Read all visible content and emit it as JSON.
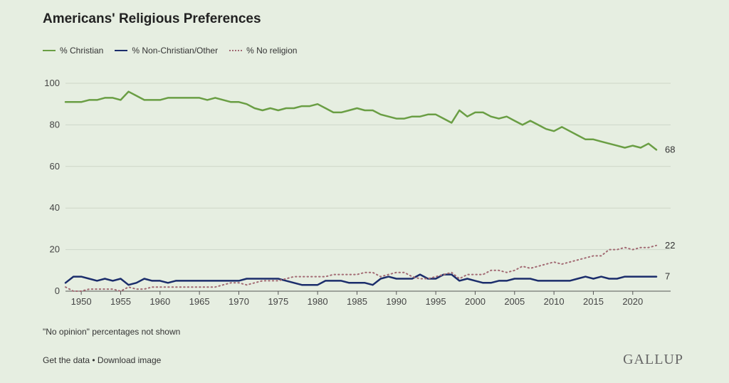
{
  "title": "Americans' Religious Preferences",
  "note": "\"No opinion\" percentages not shown",
  "links": {
    "get_data": "Get the data",
    "separator": " • ",
    "download": "Download image"
  },
  "logo_text": "GALLUP",
  "colors": {
    "christian": "#6a9e44",
    "non_christian": "#1b2d6b",
    "no_religion": "#a26a73",
    "grid": "#cdd6c8",
    "axis": "#555555"
  },
  "chart_data": {
    "type": "line",
    "title": "Americans' Religious Preferences",
    "xlabel": "",
    "ylabel": "",
    "ylim": [
      0,
      100
    ],
    "xlim": [
      1948,
      2023
    ],
    "yticks": [
      0,
      20,
      40,
      60,
      80,
      100
    ],
    "xticks": [
      1950,
      1955,
      1960,
      1965,
      1970,
      1975,
      1980,
      1985,
      1990,
      1995,
      2000,
      2005,
      2010,
      2015,
      2020
    ],
    "grid": true,
    "legend_position": "top-left",
    "series": [
      {
        "name": "% Christian",
        "style": "solid",
        "end_label": "68",
        "points": [
          [
            1948,
            91
          ],
          [
            1950,
            91
          ],
          [
            1951,
            92
          ],
          [
            1952,
            92
          ],
          [
            1953,
            93
          ],
          [
            1954,
            93
          ],
          [
            1955,
            92
          ],
          [
            1956,
            96
          ],
          [
            1957,
            94
          ],
          [
            1958,
            92
          ],
          [
            1960,
            92
          ],
          [
            1961,
            93
          ],
          [
            1965,
            93
          ],
          [
            1966,
            92
          ],
          [
            1967,
            93
          ],
          [
            1969,
            91
          ],
          [
            1970,
            91
          ],
          [
            1971,
            90
          ],
          [
            1972,
            88
          ],
          [
            1973,
            87
          ],
          [
            1974,
            88
          ],
          [
            1975,
            87
          ],
          [
            1976,
            88
          ],
          [
            1977,
            88
          ],
          [
            1978,
            89
          ],
          [
            1979,
            89
          ],
          [
            1980,
            90
          ],
          [
            1981,
            88
          ],
          [
            1982,
            86
          ],
          [
            1983,
            86
          ],
          [
            1984,
            87
          ],
          [
            1985,
            88
          ],
          [
            1986,
            87
          ],
          [
            1987,
            87
          ],
          [
            1988,
            85
          ],
          [
            1989,
            84
          ],
          [
            1990,
            83
          ],
          [
            1991,
            83
          ],
          [
            1992,
            84
          ],
          [
            1993,
            84
          ],
          [
            1994,
            85
          ],
          [
            1995,
            85
          ],
          [
            1996,
            83
          ],
          [
            1997,
            81
          ],
          [
            1998,
            87
          ],
          [
            1999,
            84
          ],
          [
            2000,
            86
          ],
          [
            2001,
            86
          ],
          [
            2002,
            84
          ],
          [
            2003,
            83
          ],
          [
            2004,
            84
          ],
          [
            2005,
            82
          ],
          [
            2006,
            80
          ],
          [
            2007,
            82
          ],
          [
            2008,
            80
          ],
          [
            2009,
            78
          ],
          [
            2010,
            77
          ],
          [
            2011,
            79
          ],
          [
            2012,
            77
          ],
          [
            2013,
            75
          ],
          [
            2014,
            73
          ],
          [
            2015,
            73
          ],
          [
            2016,
            72
          ],
          [
            2017,
            71
          ],
          [
            2018,
            70
          ],
          [
            2019,
            69
          ],
          [
            2020,
            70
          ],
          [
            2021,
            69
          ],
          [
            2022,
            71
          ],
          [
            2023,
            68
          ]
        ]
      },
      {
        "name": "% Non-Christian/Other",
        "style": "solid",
        "end_label": "7",
        "points": [
          [
            1948,
            4
          ],
          [
            1949,
            7
          ],
          [
            1950,
            7
          ],
          [
            1951,
            6
          ],
          [
            1952,
            5
          ],
          [
            1953,
            6
          ],
          [
            1954,
            5
          ],
          [
            1955,
            6
          ],
          [
            1956,
            3
          ],
          [
            1957,
            4
          ],
          [
            1958,
            6
          ],
          [
            1959,
            5
          ],
          [
            1960,
            5
          ],
          [
            1961,
            4
          ],
          [
            1962,
            5
          ],
          [
            1970,
            5
          ],
          [
            1971,
            6
          ],
          [
            1975,
            6
          ],
          [
            1976,
            5
          ],
          [
            1977,
            4
          ],
          [
            1978,
            3
          ],
          [
            1979,
            3
          ],
          [
            1980,
            3
          ],
          [
            1981,
            5
          ],
          [
            1983,
            5
          ],
          [
            1984,
            4
          ],
          [
            1986,
            4
          ],
          [
            1987,
            3
          ],
          [
            1988,
            6
          ],
          [
            1989,
            7
          ],
          [
            1990,
            6
          ],
          [
            1992,
            6
          ],
          [
            1993,
            8
          ],
          [
            1994,
            6
          ],
          [
            1995,
            6
          ],
          [
            1996,
            8
          ],
          [
            1997,
            8
          ],
          [
            1998,
            5
          ],
          [
            1999,
            6
          ],
          [
            2000,
            5
          ],
          [
            2001,
            4
          ],
          [
            2002,
            4
          ],
          [
            2003,
            5
          ],
          [
            2004,
            5
          ],
          [
            2005,
            6
          ],
          [
            2006,
            6
          ],
          [
            2007,
            6
          ],
          [
            2008,
            5
          ],
          [
            2012,
            5
          ],
          [
            2013,
            6
          ],
          [
            2014,
            7
          ],
          [
            2015,
            6
          ],
          [
            2016,
            7
          ],
          [
            2017,
            6
          ],
          [
            2018,
            6
          ],
          [
            2019,
            7
          ],
          [
            2023,
            7
          ]
        ]
      },
      {
        "name": "% No religion",
        "style": "dotted",
        "end_label": "22",
        "points": [
          [
            1948,
            2
          ],
          [
            1949,
            0
          ],
          [
            1950,
            0
          ],
          [
            1951,
            1
          ],
          [
            1954,
            1
          ],
          [
            1955,
            0
          ],
          [
            1956,
            2
          ],
          [
            1957,
            1
          ],
          [
            1958,
            1
          ],
          [
            1959,
            2
          ],
          [
            1960,
            2
          ],
          [
            1966,
            2
          ],
          [
            1967,
            2
          ],
          [
            1968,
            3
          ],
          [
            1969,
            4
          ],
          [
            1970,
            4
          ],
          [
            1971,
            3
          ],
          [
            1972,
            4
          ],
          [
            1973,
            5
          ],
          [
            1974,
            5
          ],
          [
            1975,
            5
          ],
          [
            1976,
            6
          ],
          [
            1977,
            7
          ],
          [
            1980,
            7
          ],
          [
            1981,
            7
          ],
          [
            1982,
            8
          ],
          [
            1985,
            8
          ],
          [
            1986,
            9
          ],
          [
            1987,
            9
          ],
          [
            1988,
            7
          ],
          [
            1989,
            8
          ],
          [
            1990,
            9
          ],
          [
            1991,
            9
          ],
          [
            1992,
            7
          ],
          [
            1993,
            6
          ],
          [
            1994,
            6
          ],
          [
            1995,
            7
          ],
          [
            1996,
            8
          ],
          [
            1997,
            9
          ],
          [
            1998,
            6
          ],
          [
            1999,
            8
          ],
          [
            2000,
            8
          ],
          [
            2001,
            8
          ],
          [
            2002,
            10
          ],
          [
            2003,
            10
          ],
          [
            2004,
            9
          ],
          [
            2005,
            10
          ],
          [
            2006,
            12
          ],
          [
            2007,
            11
          ],
          [
            2008,
            12
          ],
          [
            2009,
            13
          ],
          [
            2010,
            14
          ],
          [
            2011,
            13
          ],
          [
            2012,
            14
          ],
          [
            2013,
            15
          ],
          [
            2014,
            16
          ],
          [
            2015,
            17
          ],
          [
            2016,
            17
          ],
          [
            2017,
            20
          ],
          [
            2018,
            20
          ],
          [
            2019,
            21
          ],
          [
            2020,
            20
          ],
          [
            2021,
            21
          ],
          [
            2022,
            21
          ],
          [
            2023,
            22
          ]
        ]
      }
    ]
  }
}
